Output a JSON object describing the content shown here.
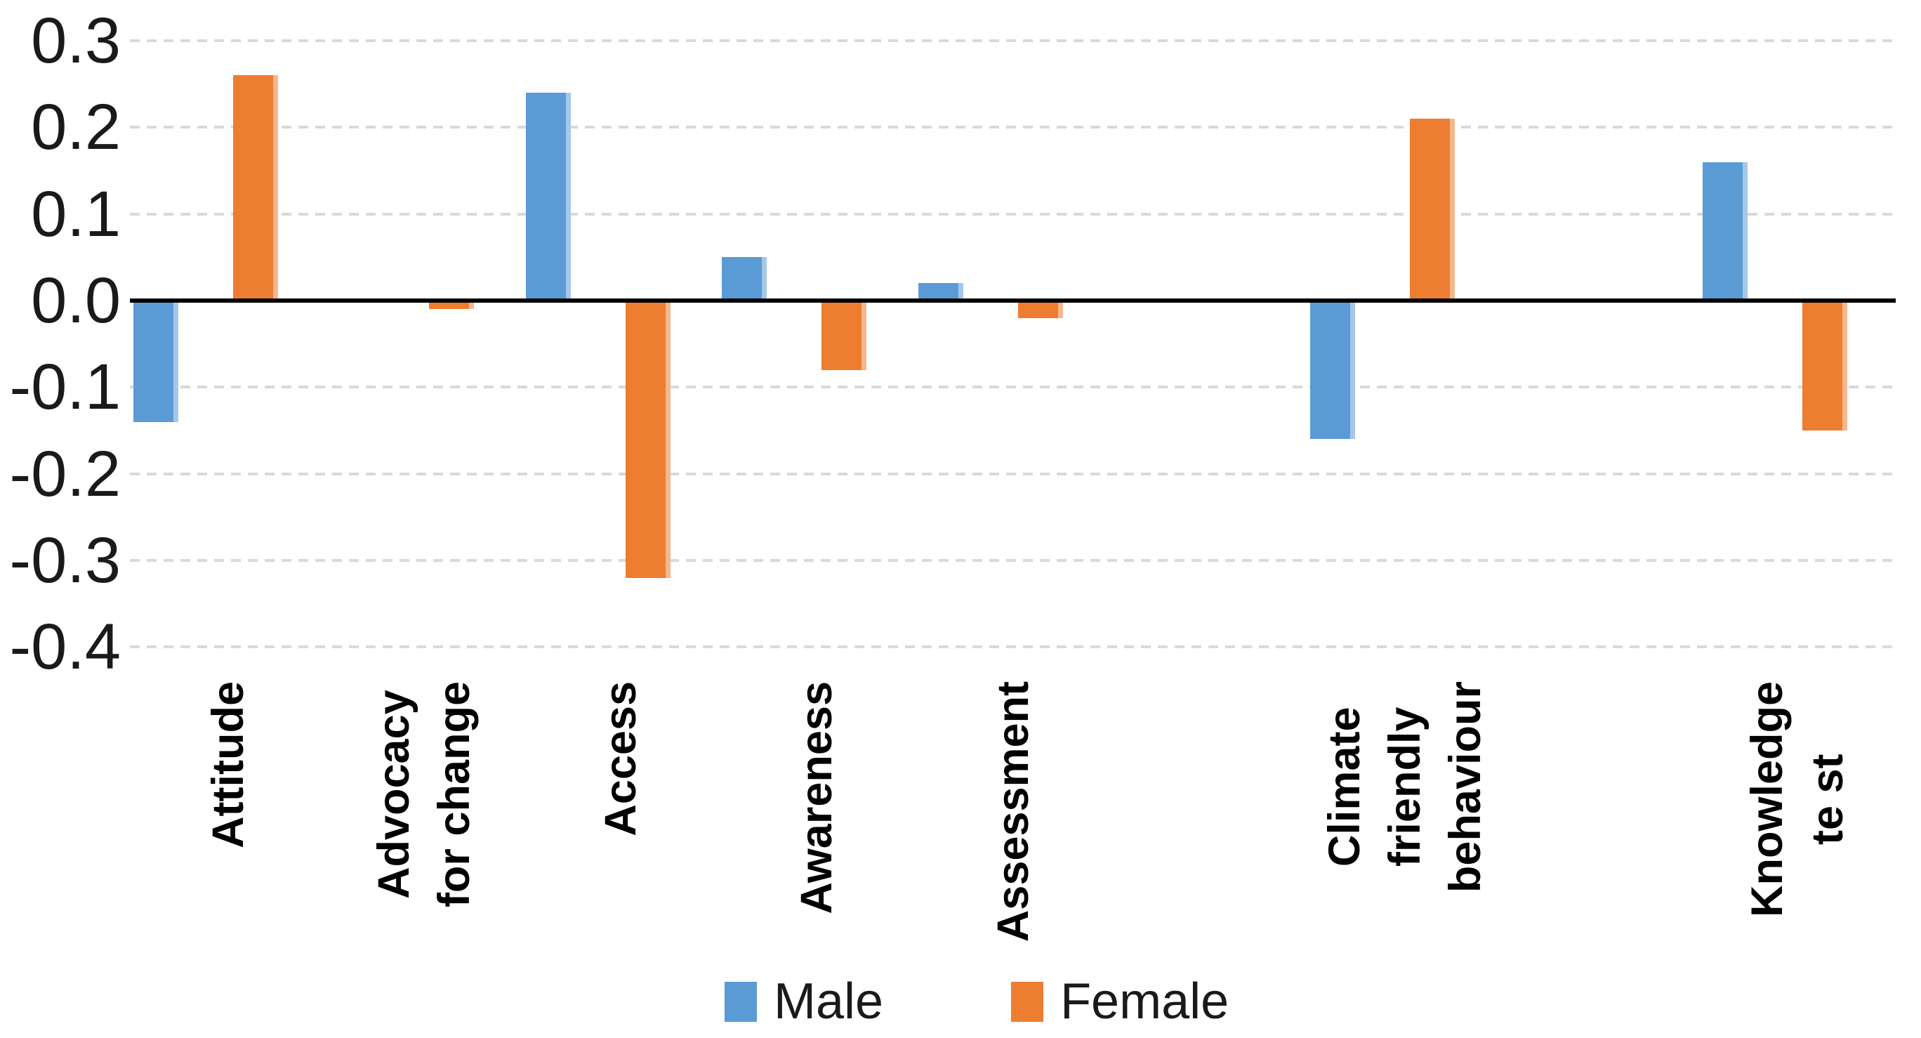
{
  "chart_data": {
    "type": "bar",
    "title": "",
    "xlabel": "",
    "ylabel": "",
    "categories": [
      "Attitude",
      "Advocacy for change",
      "Access",
      "Awareness",
      "Assessment",
      "Climate friendly behaviour",
      "Knowledge test"
    ],
    "category_display": [
      "Attitude",
      "Advocacy\nfor change",
      "Access",
      "Awareness",
      "Assessment",
      "Climate\nfriendly\nbehaviour",
      "Knowledge\nte st"
    ],
    "series": [
      {
        "name": "Male",
        "color": "#5B9BD5",
        "values": [
          -0.14,
          0,
          0.24,
          0.05,
          0.02,
          -0.16,
          0.16
        ]
      },
      {
        "name": "Female",
        "color": "#ED7D31",
        "values": [
          0.26,
          -0.01,
          -0.32,
          -0.08,
          -0.02,
          0.21,
          -0.15
        ]
      }
    ],
    "slot_of_category": [
      0,
      1,
      2,
      3,
      4,
      6,
      8
    ],
    "num_slots": 9,
    "ylim": [
      -0.4,
      0.3
    ],
    "yticks": [
      0.3,
      0.2,
      0.1,
      0.0,
      -0.1,
      -0.2,
      -0.3,
      -0.4
    ],
    "ytick_labels": [
      "0.3",
      "0.2",
      "0.1",
      "0.0",
      "-0.1",
      "-0.2",
      "-0.3",
      "-0.4"
    ],
    "grid": true,
    "gridline_style": "dashed",
    "gridline_color": "#D9D9D9",
    "axis_color": "#000000",
    "text_color": "#1A1A1A",
    "background_color": "#FFFFFF",
    "legend_position": "bottom",
    "legend": [
      "Male",
      "Female"
    ]
  }
}
